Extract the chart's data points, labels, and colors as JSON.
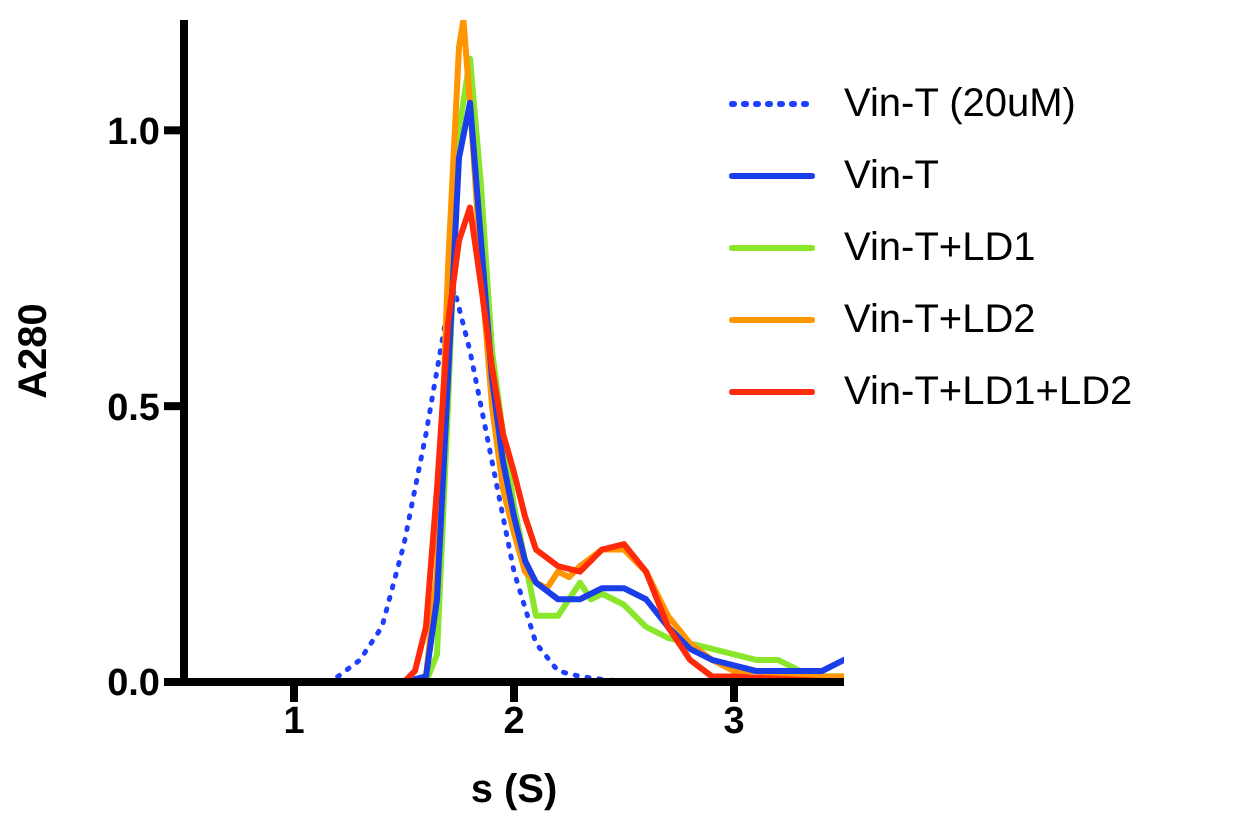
{
  "chart_data": {
    "type": "line",
    "xlabel": "s (S)",
    "ylabel": "A280",
    "xlim": [
      0.5,
      3.5
    ],
    "ylim": [
      0,
      1.2
    ],
    "xticks": [
      1,
      2,
      3
    ],
    "yticks": [
      {
        "value": 0,
        "label": "0.0"
      },
      {
        "value": 0.5,
        "label": "0.5"
      },
      {
        "value": 1,
        "label": "1.0"
      }
    ],
    "grid": false,
    "legend": "right",
    "marker": "none",
    "series": [
      {
        "name": "Vin-T (20uM)",
        "color": "#1f3fff",
        "line_style": "dotted",
        "x": [
          1.15,
          1.2,
          1.3,
          1.4,
          1.5,
          1.6,
          1.7,
          1.73,
          1.8,
          1.9,
          2.0,
          2.1,
          2.2,
          2.3,
          2.5,
          2.95
        ],
        "values": [
          0,
          0.01,
          0.04,
          0.1,
          0.25,
          0.45,
          0.68,
          0.71,
          0.6,
          0.4,
          0.2,
          0.07,
          0.02,
          0.01,
          0,
          0
        ]
      },
      {
        "name": "Vin-T",
        "color": "#1a3fe8",
        "line_style": "solid",
        "x": [
          0.5,
          1.5,
          1.6,
          1.65,
          1.7,
          1.75,
          1.8,
          1.85,
          1.9,
          1.95,
          2.0,
          2.05,
          2.1,
          2.2,
          2.3,
          2.4,
          2.5,
          2.6,
          2.7,
          2.8,
          2.9,
          3.0,
          3.1,
          3.2,
          3.3,
          3.4,
          3.5
        ],
        "values": [
          0,
          0,
          0.01,
          0.15,
          0.55,
          0.95,
          1.05,
          0.8,
          0.55,
          0.4,
          0.3,
          0.22,
          0.18,
          0.15,
          0.15,
          0.17,
          0.17,
          0.15,
          0.1,
          0.06,
          0.04,
          0.03,
          0.02,
          0.02,
          0.02,
          0.02,
          0.04
        ]
      },
      {
        "name": "Vin-T+LD1",
        "color": "#8ae62a",
        "line_style": "solid",
        "x": [
          0.5,
          1.6,
          1.65,
          1.7,
          1.75,
          1.8,
          1.85,
          1.9,
          1.95,
          2.0,
          2.05,
          2.1,
          2.2,
          2.3,
          2.35,
          2.4,
          2.5,
          2.6,
          2.7,
          2.8,
          2.9,
          3.0,
          3.1,
          3.2,
          3.3,
          3.4,
          3.5
        ],
        "values": [
          0,
          0,
          0.05,
          0.5,
          1.0,
          1.13,
          0.9,
          0.6,
          0.45,
          0.32,
          0.22,
          0.12,
          0.12,
          0.18,
          0.15,
          0.16,
          0.14,
          0.1,
          0.08,
          0.07,
          0.06,
          0.05,
          0.04,
          0.04,
          0.02,
          0.01,
          0.01
        ]
      },
      {
        "name": "Vin-T+LD2",
        "color": "#ff9500",
        "line_style": "solid",
        "x": [
          0.5,
          1.55,
          1.6,
          1.65,
          1.7,
          1.75,
          1.77,
          1.8,
          1.85,
          1.9,
          1.95,
          2.0,
          2.05,
          2.1,
          2.15,
          2.2,
          2.25,
          2.3,
          2.4,
          2.5,
          2.6,
          2.7,
          2.8,
          2.9,
          3.0,
          3.1,
          3.2,
          3.3,
          3.4,
          3.5
        ],
        "values": [
          0,
          0,
          0.01,
          0.2,
          0.75,
          1.15,
          1.2,
          1.05,
          0.75,
          0.5,
          0.35,
          0.27,
          0.2,
          0.18,
          0.17,
          0.2,
          0.19,
          0.21,
          0.24,
          0.24,
          0.2,
          0.12,
          0.07,
          0.04,
          0.02,
          0.02,
          0.01,
          0.01,
          0.01,
          0.01
        ]
      },
      {
        "name": "Vin-T+LD1+LD2",
        "color": "#ff2a0a",
        "line_style": "solid",
        "x": [
          0.5,
          1.5,
          1.55,
          1.6,
          1.65,
          1.7,
          1.75,
          1.8,
          1.85,
          1.9,
          1.95,
          2.0,
          2.05,
          2.1,
          2.2,
          2.3,
          2.4,
          2.5,
          2.6,
          2.7,
          2.8,
          2.9,
          3.0,
          3.5
        ],
        "values": [
          0,
          0,
          0.02,
          0.1,
          0.35,
          0.65,
          0.8,
          0.86,
          0.72,
          0.57,
          0.45,
          0.38,
          0.3,
          0.24,
          0.21,
          0.2,
          0.24,
          0.25,
          0.2,
          0.1,
          0.04,
          0.01,
          0.01,
          0
        ]
      }
    ]
  }
}
